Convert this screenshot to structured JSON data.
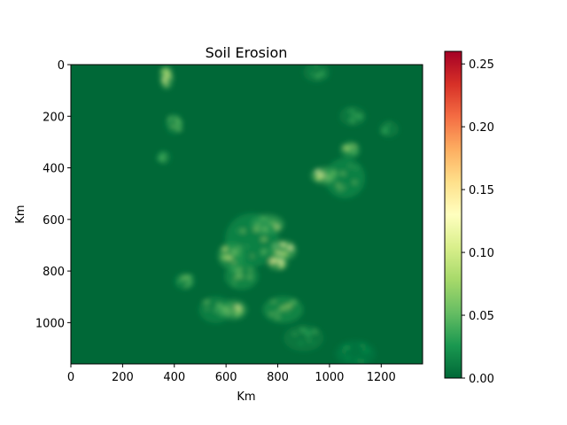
{
  "chart_data": {
    "type": "heatmap",
    "title": "Soil Erosion",
    "xlabel": "Km",
    "ylabel": "Km",
    "xlim": [
      0,
      1360
    ],
    "ylim": [
      1160,
      0
    ],
    "x_ticks": [
      0,
      200,
      400,
      600,
      800,
      1000,
      1200
    ],
    "y_ticks": [
      0,
      200,
      400,
      600,
      800,
      1000
    ],
    "colorbar": {
      "colormap": "RdYlGn_r",
      "range": [
        0.0,
        0.26
      ],
      "ticks": [
        "0.00",
        "0.05",
        "0.10",
        "0.15",
        "0.20",
        "0.25"
      ],
      "tick_values": [
        0.0,
        0.05,
        0.1,
        0.15,
        0.2,
        0.25
      ]
    },
    "background_value": 0.0,
    "grid": false,
    "hotspots": [
      {
        "x": 370,
        "y": 50,
        "value": 0.13,
        "rx": 20,
        "ry": 35
      },
      {
        "x": 400,
        "y": 230,
        "value": 0.06,
        "rx": 25,
        "ry": 30
      },
      {
        "x": 360,
        "y": 360,
        "value": 0.05,
        "rx": 20,
        "ry": 20
      },
      {
        "x": 1090,
        "y": 200,
        "value": 0.04,
        "rx": 40,
        "ry": 30
      },
      {
        "x": 1230,
        "y": 250,
        "value": 0.04,
        "rx": 30,
        "ry": 25
      },
      {
        "x": 980,
        "y": 430,
        "value": 0.14,
        "rx": 40,
        "ry": 25
      },
      {
        "x": 1080,
        "y": 330,
        "value": 0.09,
        "rx": 30,
        "ry": 25
      },
      {
        "x": 1060,
        "y": 440,
        "value": 0.07,
        "rx": 60,
        "ry": 60
      },
      {
        "x": 760,
        "y": 620,
        "value": 0.12,
        "rx": 50,
        "ry": 30
      },
      {
        "x": 820,
        "y": 720,
        "value": 0.14,
        "rx": 40,
        "ry": 30
      },
      {
        "x": 800,
        "y": 770,
        "value": 0.15,
        "rx": 30,
        "ry": 20
      },
      {
        "x": 620,
        "y": 740,
        "value": 0.1,
        "rx": 40,
        "ry": 40
      },
      {
        "x": 660,
        "y": 820,
        "value": 0.08,
        "rx": 50,
        "ry": 40
      },
      {
        "x": 630,
        "y": 950,
        "value": 0.11,
        "rx": 40,
        "ry": 30
      },
      {
        "x": 820,
        "y": 950,
        "value": 0.08,
        "rx": 60,
        "ry": 40
      },
      {
        "x": 440,
        "y": 840,
        "value": 0.06,
        "rx": 30,
        "ry": 25
      },
      {
        "x": 700,
        "y": 680,
        "value": 0.07,
        "rx": 80,
        "ry": 80
      },
      {
        "x": 560,
        "y": 950,
        "value": 0.06,
        "rx": 50,
        "ry": 40
      },
      {
        "x": 900,
        "y": 1060,
        "value": 0.04,
        "rx": 60,
        "ry": 40
      },
      {
        "x": 950,
        "y": 30,
        "value": 0.04,
        "rx": 40,
        "ry": 30
      },
      {
        "x": 1100,
        "y": 1120,
        "value": 0.03,
        "rx": 60,
        "ry": 40
      }
    ]
  }
}
